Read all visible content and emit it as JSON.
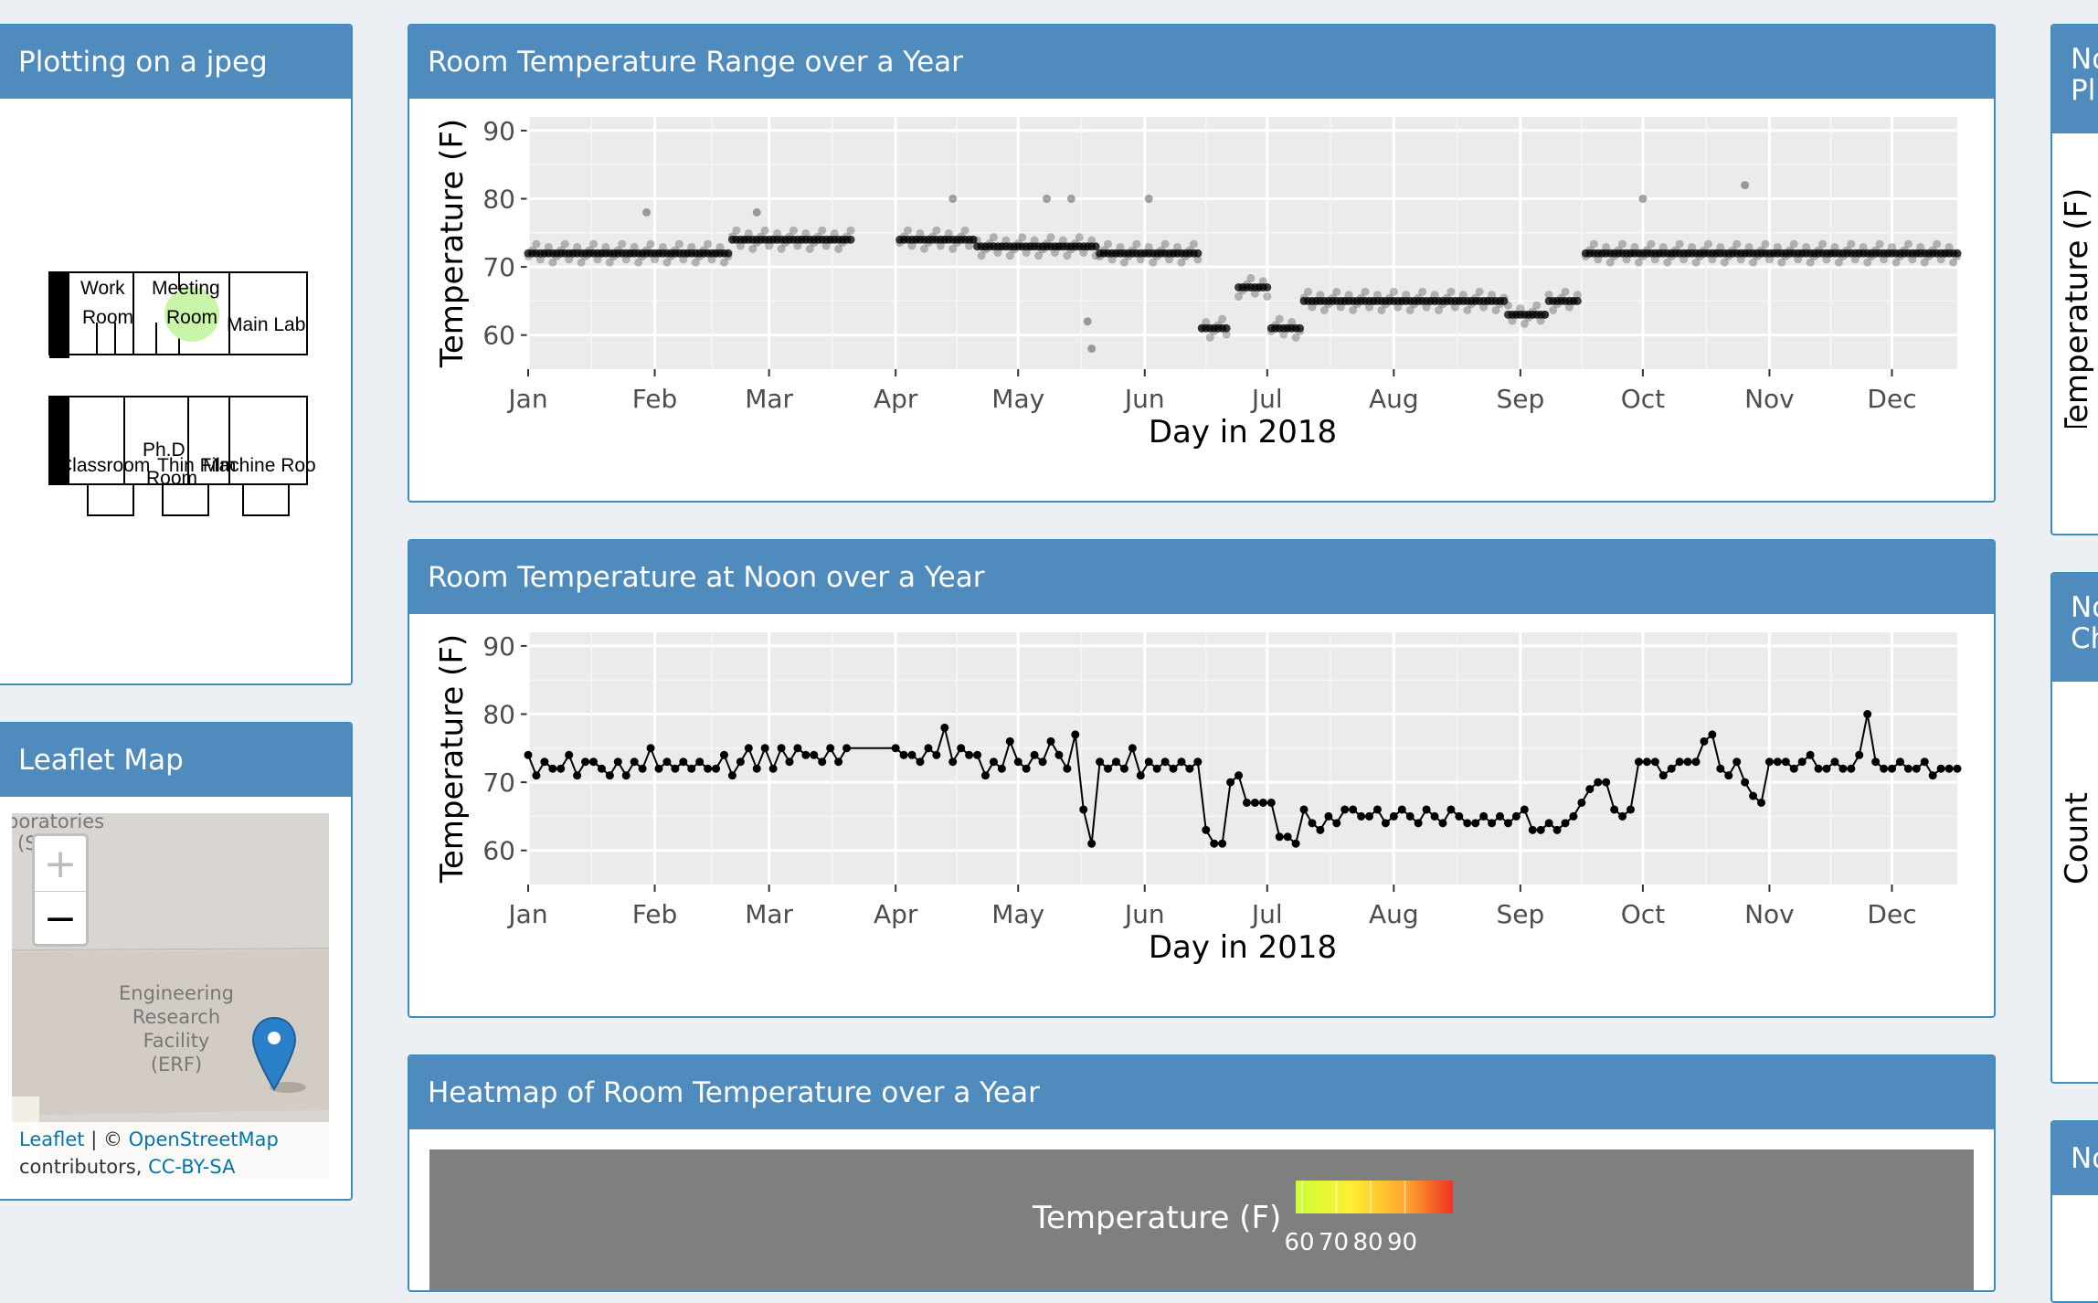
{
  "boxes": {
    "jpeg_plot": {
      "title": "Plotting on a jpeg"
    },
    "leaflet": {
      "title": "Leaflet Map"
    },
    "range_plot": {
      "title": "Room Temperature Range over a Year"
    },
    "noon_plot": {
      "title": "Room Temperature at Noon over a Year"
    },
    "heatmap": {
      "title": "Heatmap of Room Temperature over a Year"
    },
    "right1": {
      "title_line1": "No",
      "title_line2": "Pl",
      "ylabel": "Temperature (F)"
    },
    "right2": {
      "title_line1": "No",
      "title_line2": "Ch",
      "ylabel": "Count"
    },
    "right3": {
      "title_line1": "No"
    }
  },
  "floorplan": {
    "rooms": [
      "Work",
      "Room",
      "Meeting",
      "Room",
      "Main Lab",
      "Ph.D",
      "Classroom",
      "Thin Film",
      "Machine Roo",
      "Room"
    ],
    "highlight_color": "#c8f5a8"
  },
  "leaflet": {
    "zoom_in": "+",
    "zoom_out": "−",
    "map_label_top": "boratories",
    "map_label_top2": "(S",
    "building_label": [
      "Engineering",
      "Research",
      "Facility",
      "(ERF)"
    ],
    "marker_color": "#2a7fc9",
    "attribution_leaflet": "Leaflet",
    "attribution_sep": " | © ",
    "attribution_osm": "OpenStreetMap",
    "attribution_contrib": "contributors, ",
    "attribution_license": "CC-BY-SA"
  },
  "chart_data": [
    {
      "type": "scatter",
      "title": "Room Temperature Range over a Year",
      "xlabel": "Day in 2018",
      "ylabel": "Temperature (F)",
      "x_ticks": [
        "Jan",
        "Feb",
        "Mar",
        "Apr",
        "May",
        "Jun",
        "Jul",
        "Aug",
        "Sep",
        "Oct",
        "Nov",
        "Dec"
      ],
      "y_ticks": [
        60,
        70,
        80,
        90
      ],
      "xlim": [
        1,
        351
      ],
      "ylim": [
        55,
        92
      ],
      "grid": true,
      "segments": [
        {
          "from": 1,
          "to": 10,
          "y": 72
        },
        {
          "from": 11,
          "to": 30,
          "y": 72
        },
        {
          "from": 31,
          "to": 50,
          "y": 72
        },
        {
          "from": 51,
          "to": 60,
          "y": 74
        },
        {
          "from": 61,
          "to": 80,
          "y": 74
        },
        {
          "from": 92,
          "to": 110,
          "y": 74
        },
        {
          "from": 111,
          "to": 140,
          "y": 73
        },
        {
          "from": 141,
          "to": 165,
          "y": 72
        },
        {
          "from": 166,
          "to": 172,
          "y": 61
        },
        {
          "from": 175,
          "to": 182,
          "y": 67
        },
        {
          "from": 183,
          "to": 190,
          "y": 61
        },
        {
          "from": 191,
          "to": 240,
          "y": 65
        },
        {
          "from": 241,
          "to": 250,
          "y": 63
        },
        {
          "from": 251,
          "to": 258,
          "y": 65
        },
        {
          "from": 260,
          "to": 300,
          "y": 72
        },
        {
          "from": 301,
          "to": 351,
          "y": 72
        }
      ],
      "outliers": [
        {
          "x": 105,
          "y": 80
        },
        {
          "x": 128,
          "y": 80
        },
        {
          "x": 134,
          "y": 80
        },
        {
          "x": 138,
          "y": 62
        },
        {
          "x": 139,
          "y": 58
        },
        {
          "x": 153,
          "y": 80
        },
        {
          "x": 274,
          "y": 80
        },
        {
          "x": 299,
          "y": 82
        },
        {
          "x": 30,
          "y": 78
        },
        {
          "x": 57,
          "y": 78
        }
      ]
    },
    {
      "type": "line",
      "title": "Room Temperature at Noon over a Year",
      "xlabel": "Day in 2018",
      "ylabel": "Temperature (F)",
      "x_ticks": [
        "Jan",
        "Feb",
        "Mar",
        "Apr",
        "May",
        "Jun",
        "Jul",
        "Aug",
        "Sep",
        "Oct",
        "Nov",
        "Dec"
      ],
      "y_ticks": [
        60,
        70,
        80,
        90
      ],
      "xlim": [
        1,
        351
      ],
      "ylim": [
        55,
        92
      ],
      "grid": true,
      "x": [
        1,
        3,
        5,
        7,
        9,
        11,
        13,
        15,
        17,
        19,
        21,
        23,
        25,
        27,
        29,
        31,
        33,
        35,
        37,
        39,
        41,
        43,
        45,
        47,
        49,
        51,
        53,
        55,
        57,
        59,
        61,
        63,
        65,
        67,
        69,
        71,
        73,
        75,
        77,
        79,
        91,
        93,
        95,
        97,
        99,
        101,
        103,
        105,
        107,
        109,
        111,
        113,
        115,
        117,
        119,
        121,
        123,
        125,
        127,
        129,
        131,
        133,
        135,
        137,
        139,
        141,
        143,
        145,
        147,
        149,
        151,
        153,
        155,
        157,
        159,
        161,
        163,
        165,
        167,
        169,
        171,
        173,
        175,
        177,
        179,
        181,
        183,
        185,
        187,
        189,
        191,
        193,
        195,
        197,
        199,
        201,
        203,
        205,
        207,
        209,
        211,
        213,
        215,
        217,
        219,
        221,
        223,
        225,
        227,
        229,
        231,
        233,
        235,
        237,
        239,
        241,
        243,
        245,
        247,
        249,
        251,
        253,
        255,
        257,
        259,
        261,
        263,
        265,
        267,
        269,
        271,
        273,
        275,
        277,
        279,
        281,
        283,
        285,
        287,
        289,
        291,
        293,
        295,
        297,
        299,
        301,
        303,
        305,
        307,
        309,
        311,
        313,
        315,
        317,
        319,
        321,
        323,
        325,
        327,
        329,
        331,
        333,
        335,
        337,
        339,
        341,
        343,
        345,
        347,
        349,
        351
      ],
      "y": [
        74,
        71,
        73,
        72,
        72,
        74,
        71,
        73,
        73,
        72,
        71,
        73,
        71,
        73,
        72,
        75,
        72,
        73,
        72,
        73,
        72,
        73,
        72,
        72,
        74,
        71,
        73,
        75,
        72,
        75,
        72,
        75,
        73,
        75,
        74,
        74,
        73,
        75,
        73,
        75,
        75,
        74,
        74,
        73,
        75,
        74,
        78,
        73,
        75,
        74,
        74,
        71,
        73,
        72,
        76,
        73,
        72,
        74,
        73,
        76,
        74,
        72,
        77,
        66,
        61,
        73,
        72,
        73,
        72,
        75,
        71,
        73,
        72,
        73,
        72,
        73,
        72,
        73,
        63,
        61,
        61,
        70,
        71,
        67,
        67,
        67,
        67,
        62,
        62,
        61,
        66,
        64,
        63,
        65,
        64,
        66,
        66,
        65,
        65,
        66,
        64,
        65,
        66,
        65,
        64,
        66,
        65,
        64,
        66,
        65,
        64,
        64,
        65,
        64,
        65,
        64,
        65,
        66,
        63,
        63,
        64,
        63,
        64,
        65,
        67,
        69,
        70,
        70,
        66,
        65,
        66,
        73,
        73,
        73,
        71,
        72,
        73,
        73,
        73,
        76,
        77,
        72,
        71,
        73,
        70,
        68,
        67,
        73,
        73,
        73,
        72,
        73,
        74,
        72,
        72,
        73,
        72,
        72,
        74,
        80,
        73,
        72,
        72,
        73,
        72,
        72,
        73,
        71,
        72,
        72,
        72
      ]
    },
    {
      "type": "heatmap",
      "title": "Heatmap of Room Temperature over a Year",
      "legend_title": "Temperature (F)",
      "legend_ticks": [
        60,
        70,
        80,
        90
      ],
      "colors": [
        "#ccff33",
        "#ffee33",
        "#ffa62e",
        "#ee3322"
      ]
    }
  ]
}
